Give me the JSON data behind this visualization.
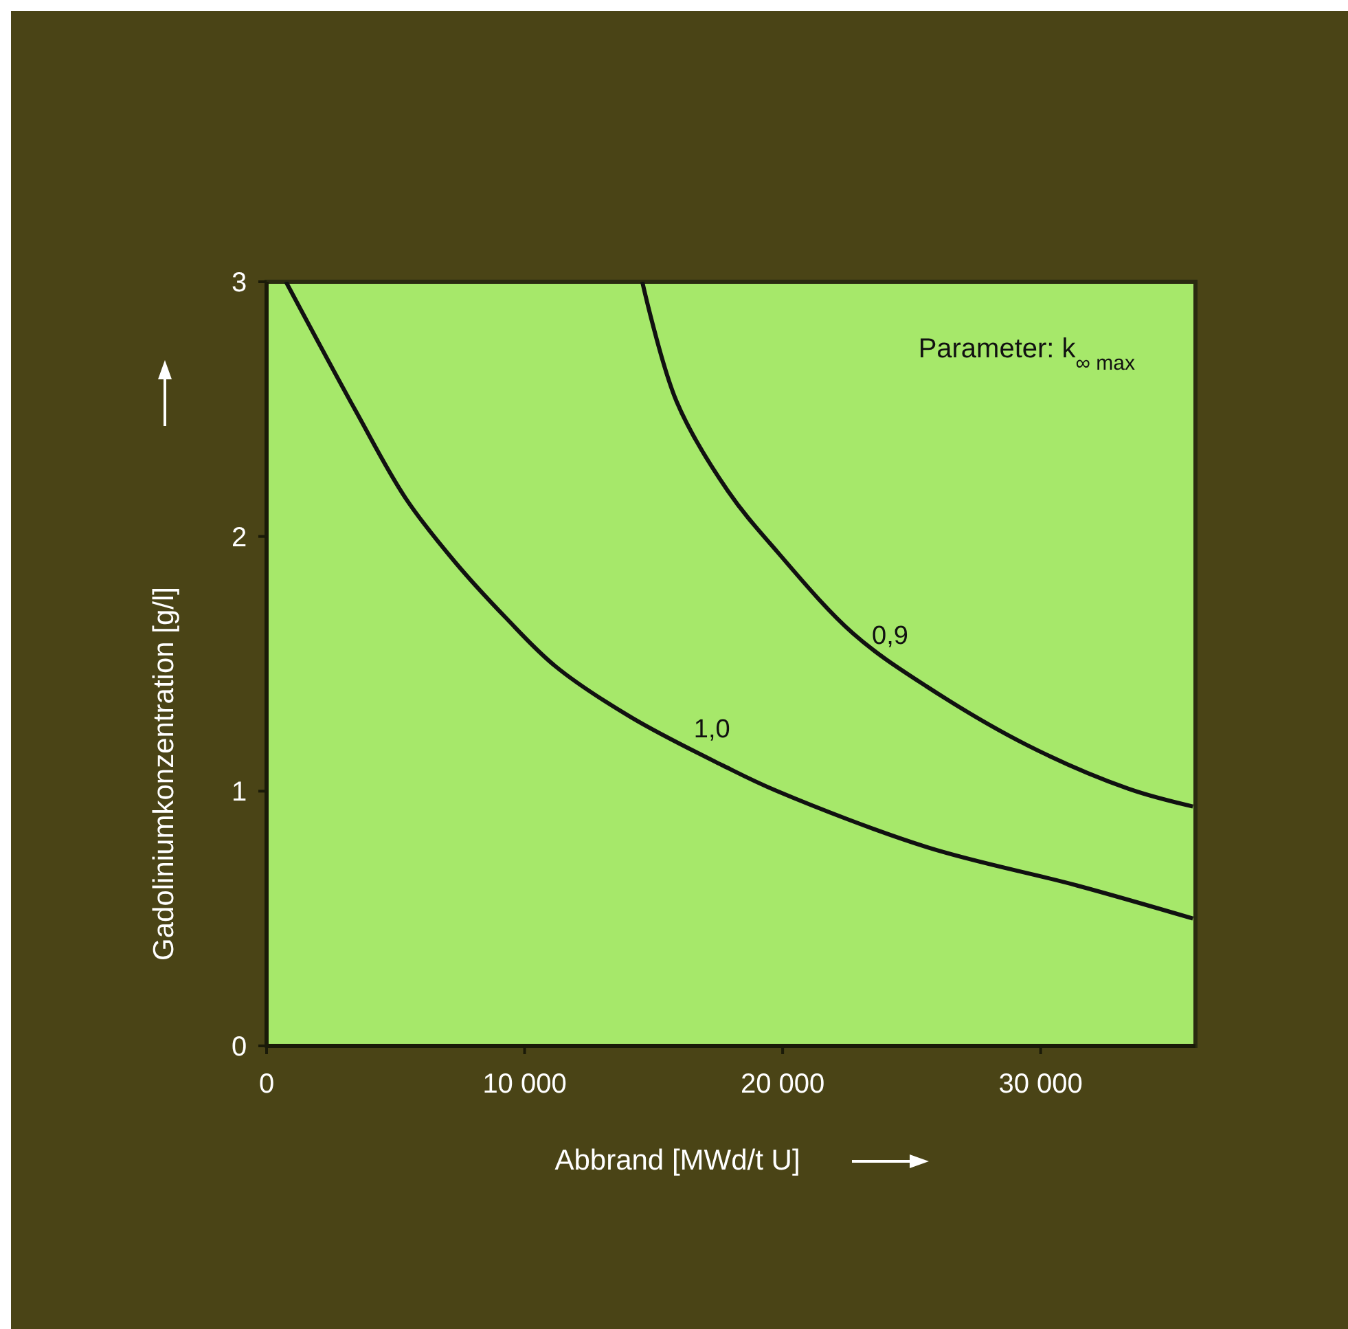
{
  "chart_data": {
    "type": "line",
    "xlabel": "Abbrand [MWd/t U]",
    "ylabel": "Gadoliniumkonzentration [g/l]",
    "annotations": [
      "Parameter: k$_{∞ max}$"
    ],
    "xlim": [
      0,
      36000
    ],
    "ylim": [
      0,
      3
    ],
    "xticks": [
      0,
      {
        "value": 10000,
        "label": "10 000"
      },
      {
        "value": 20000,
        "label": "20 000"
      },
      {
        "value": 30000,
        "label": "30 000"
      }
    ],
    "yticks": [
      0,
      1,
      2,
      3
    ],
    "grid": false,
    "marker": "none",
    "line_style": "solid",
    "series": [
      {
        "name": "1,0",
        "color": "#111111",
        "x": [
          750,
          3470,
          5390,
          7300,
          9280,
          11200,
          14130,
          17700,
          19790,
          25600,
          31400,
          35900
        ],
        "values": [
          3.0,
          2.49,
          2.15,
          1.9,
          1.68,
          1.49,
          1.29,
          1.1,
          1.0,
          0.78,
          0.63,
          0.5
        ]
      },
      {
        "name": "0,9",
        "color": "#111111",
        "x": [
          14560,
          15890,
          17870,
          19790,
          22720,
          25600,
          29490,
          33390,
          35900
        ],
        "values": [
          3.0,
          2.53,
          2.18,
          1.94,
          1.62,
          1.41,
          1.18,
          1.01,
          0.94
        ]
      }
    ]
  }
}
